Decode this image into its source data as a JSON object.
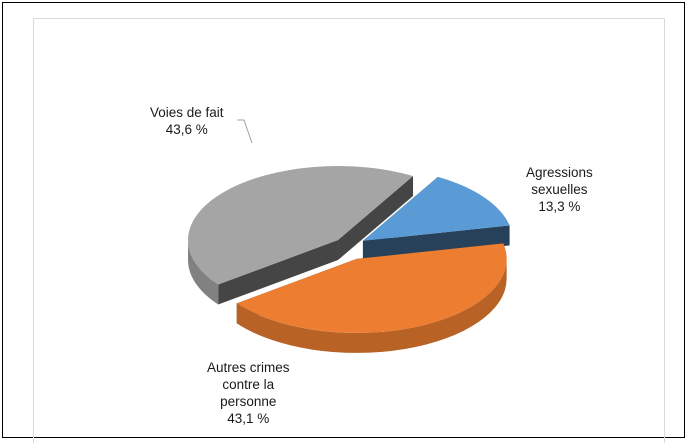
{
  "chart_data": {
    "type": "pie",
    "title": "",
    "style": "3d-exploded",
    "legend": "none",
    "slices": [
      {
        "label": [
          "Agressions",
          "sexuelles"
        ],
        "value_label": "13,3 %",
        "value": 13.3,
        "color": "#5b9bd5"
      },
      {
        "label": [
          "Autres crimes",
          "contre la",
          "personne"
        ],
        "value_label": "43,1 %",
        "value": 43.1,
        "color": "#ed7d31"
      },
      {
        "label": [
          "Voies de fait"
        ],
        "value_label": "43,6 %",
        "value": 43.6,
        "color": "#a5a5a5"
      }
    ]
  }
}
